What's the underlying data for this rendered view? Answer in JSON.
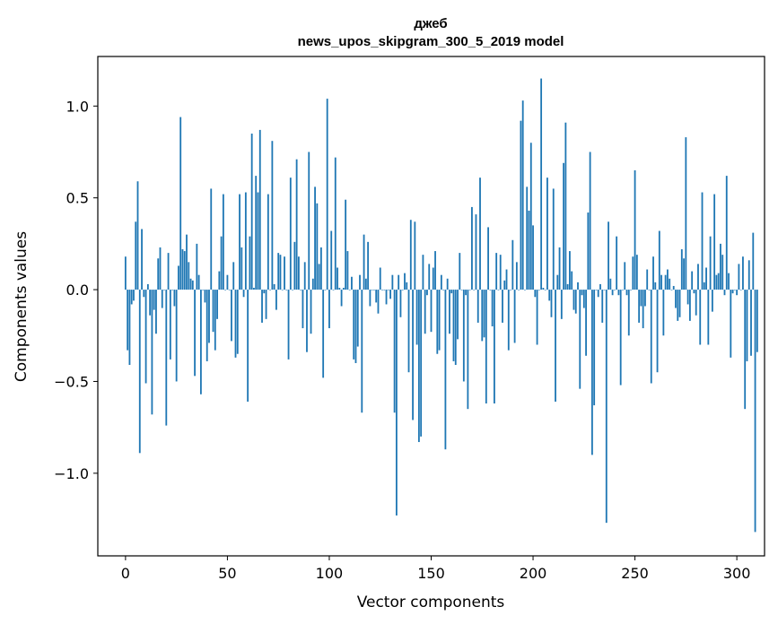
{
  "chart_data": {
    "type": "bar",
    "title": "джеб",
    "subtitle": "news_upos_skipgram_300_5_2019 model",
    "xlabel": "Vector components",
    "ylabel": "Components values",
    "xlim": [
      -13.6,
      313.6
    ],
    "ylim": [
      -1.45,
      1.27
    ],
    "xticks": [
      0,
      50,
      100,
      150,
      200,
      250,
      300
    ],
    "yticks": [
      -1.0,
      -0.5,
      0.0,
      0.5,
      1.0
    ],
    "ytick_labels": [
      "−1.0",
      "−0.5",
      "0.0",
      "0.5",
      "1.0"
    ],
    "color": "#1f77b4",
    "values": [
      0.18,
      -0.33,
      -0.41,
      -0.08,
      -0.06,
      0.37,
      0.59,
      -0.89,
      0.33,
      -0.04,
      -0.51,
      0.03,
      -0.14,
      -0.68,
      -0.11,
      -0.24,
      0.17,
      0.23,
      -0.1,
      0.0,
      -0.74,
      0.2,
      -0.38,
      0.0,
      -0.09,
      -0.5,
      0.13,
      0.94,
      0.22,
      0.21,
      0.3,
      0.15,
      0.06,
      0.05,
      -0.47,
      0.25,
      0.08,
      -0.57,
      0.0,
      -0.07,
      -0.39,
      -0.29,
      0.55,
      -0.23,
      -0.33,
      -0.16,
      0.1,
      0.29,
      0.52,
      0.0,
      0.08,
      0.0,
      -0.28,
      0.15,
      -0.37,
      -0.35,
      0.52,
      0.23,
      -0.04,
      0.53,
      -0.61,
      0.29,
      0.85,
      0.01,
      0.62,
      0.53,
      0.87,
      -0.18,
      -0.02,
      -0.16,
      0.52,
      0.0,
      0.81,
      0.03,
      -0.11,
      0.2,
      0.19,
      0.0,
      0.18,
      0.0,
      -0.38,
      0.61,
      0.0,
      0.26,
      0.71,
      0.18,
      0.0,
      -0.21,
      0.15,
      -0.34,
      0.75,
      -0.24,
      0.06,
      0.56,
      0.47,
      0.14,
      0.23,
      -0.48,
      0.0,
      1.04,
      -0.21,
      0.32,
      0.0,
      0.72,
      0.12,
      0.01,
      -0.09,
      0.01,
      0.49,
      0.21,
      0.0,
      0.07,
      -0.38,
      -0.4,
      -0.31,
      0.08,
      -0.67,
      0.3,
      0.06,
      0.26,
      -0.09,
      0.0,
      0.0,
      -0.07,
      -0.13,
      0.12,
      0.0,
      0.0,
      -0.08,
      0.0,
      -0.05,
      0.08,
      -0.67,
      -1.23,
      0.08,
      -0.15,
      0.0,
      0.09,
      0.04,
      -0.45,
      0.38,
      -0.71,
      0.37,
      -0.3,
      -0.83,
      -0.8,
      0.19,
      -0.24,
      -0.03,
      0.14,
      -0.23,
      0.12,
      0.21,
      -0.35,
      -0.33,
      0.08,
      0.0,
      -0.87,
      0.06,
      -0.24,
      -0.02,
      -0.39,
      -0.41,
      -0.27,
      0.2,
      0.0,
      -0.5,
      -0.03,
      -0.65,
      0.0,
      0.45,
      0.0,
      0.41,
      -0.18,
      0.61,
      -0.28,
      -0.26,
      -0.62,
      0.34,
      0.0,
      -0.2,
      -0.62,
      0.2,
      0.0,
      0.19,
      -0.18,
      0.05,
      0.11,
      -0.33,
      0.0,
      0.27,
      -0.29,
      0.15,
      0.0,
      0.92,
      1.03,
      0.0,
      0.56,
      0.43,
      0.8,
      0.35,
      -0.04,
      -0.3,
      0.0,
      1.15,
      0.01,
      0.0,
      0.61,
      -0.06,
      -0.15,
      0.55,
      -0.61,
      0.08,
      0.23,
      -0.16,
      0.69,
      0.91,
      0.03,
      0.21,
      0.1,
      -0.11,
      -0.13,
      0.04,
      -0.54,
      -0.03,
      -0.1,
      -0.36,
      0.42,
      0.75,
      -0.9,
      -0.63,
      0.0,
      -0.04,
      0.03,
      -0.18,
      0.0,
      -1.27,
      0.37,
      0.06,
      -0.03,
      0.0,
      0.29,
      -0.03,
      -0.52,
      0.0,
      0.15,
      -0.03,
      -0.25,
      0.0,
      0.18,
      0.65,
      0.19,
      -0.18,
      -0.09,
      -0.21,
      -0.09,
      0.11,
      0.0,
      -0.51,
      0.18,
      0.04,
      -0.45,
      0.32,
      0.08,
      -0.25,
      0.08,
      0.11,
      0.06,
      0.0,
      0.02,
      -0.1,
      -0.17,
      -0.15,
      0.22,
      0.17,
      0.83,
      -0.08,
      -0.17,
      0.1,
      -0.02,
      -0.14,
      0.14,
      -0.3,
      0.53,
      0.04,
      0.12,
      -0.3,
      0.29,
      -0.12,
      0.52,
      0.08,
      0.09,
      0.25,
      0.19,
      -0.03,
      0.62,
      0.09,
      -0.37,
      -0.02,
      0.0,
      -0.03,
      0.14,
      0.0,
      0.18,
      -0.65,
      -0.39,
      0.16,
      -0.36,
      0.31,
      -1.32,
      -0.34
    ]
  }
}
